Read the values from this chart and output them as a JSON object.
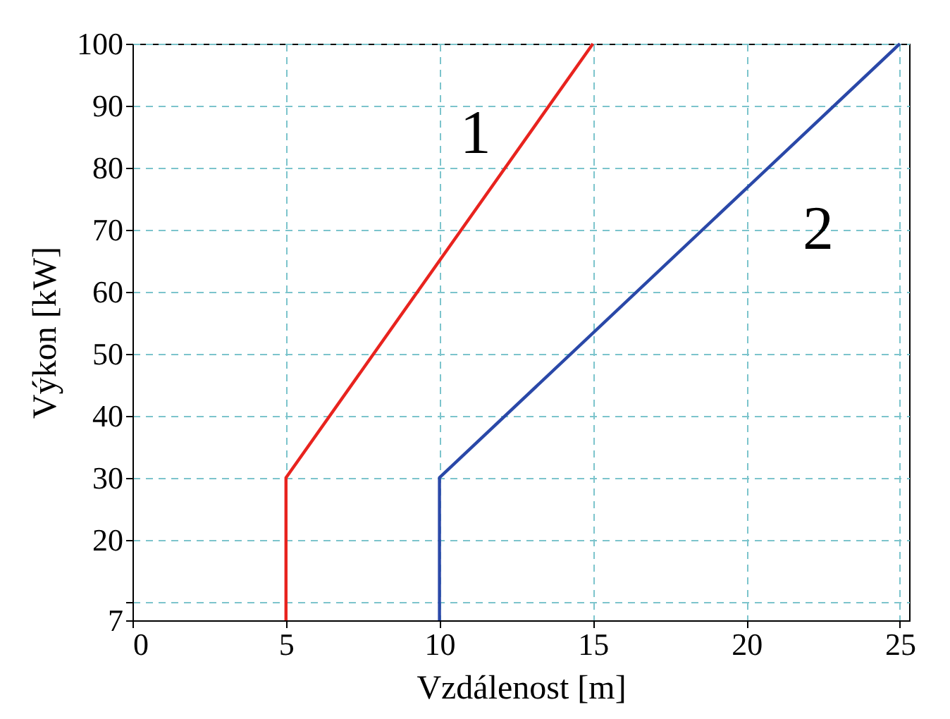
{
  "chart_data": {
    "type": "line",
    "xlabel": "Vzdálenost [m]",
    "ylabel": "Výkon [kW]",
    "series": [
      {
        "name": "1",
        "color": "#e8231e",
        "x": [
          5,
          5,
          15
        ],
        "values": [
          7,
          30,
          100
        ]
      },
      {
        "name": "2",
        "color": "#2a48a8",
        "x": [
          10,
          10,
          25
        ],
        "values": [
          7,
          30,
          100
        ]
      }
    ],
    "xlim": [
      0,
      25.3
    ],
    "xticks": [
      0,
      5,
      10,
      15,
      20,
      25
    ],
    "ylim": [
      7,
      100
    ],
    "yticks": [
      7,
      {
        "value": 10,
        "label": null
      },
      20,
      30,
      40,
      50,
      60,
      70,
      80,
      90,
      100
    ],
    "grid": true,
    "marker": "none",
    "line_style": "solid"
  }
}
